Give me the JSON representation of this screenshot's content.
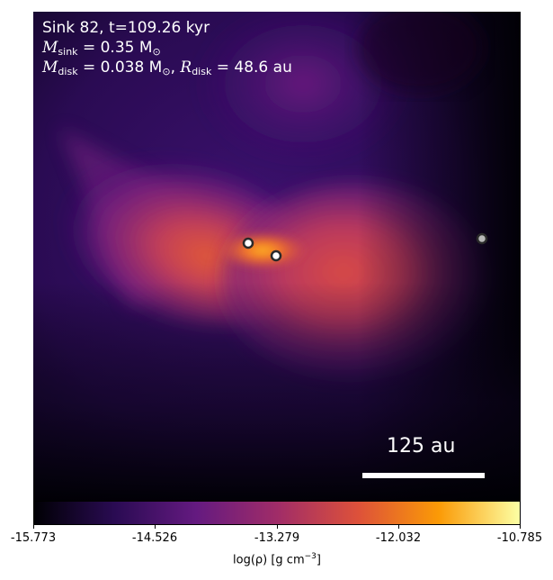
{
  "annotation": {
    "line1": "Sink 82, t=109.26 kyr",
    "m_sink_symbol": "M",
    "m_sink_sub": "sink",
    "m_sink_value": " = 0.35 M",
    "m_sink_unit_sub": "⊙",
    "m_disk_symbol": "M",
    "m_disk_sub": "disk",
    "m_disk_value": " = 0.038 M",
    "m_disk_unit_sub": "⊙",
    "r_disk_sep": ", ",
    "r_disk_symbol": "R",
    "r_disk_sub": "disk",
    "r_disk_value": " = 48.6 au"
  },
  "scale_bar": {
    "label": "125 au"
  },
  "sinks": [
    {
      "name": "sink-primary",
      "fill": "#ffffff"
    },
    {
      "name": "sink-secondary",
      "fill": "#ffffff"
    },
    {
      "name": "sink-distant",
      "fill": "#b8b8b8"
    }
  ],
  "colorbar": {
    "ticks": [
      "-15.773",
      "-14.526",
      "-13.279",
      "-12.032",
      "-10.785"
    ],
    "label_main": "log(ρ) [g cm",
    "label_exp": "−3",
    "label_end": "]",
    "colors": [
      "#000004",
      "#2a0b53",
      "#641a80",
      "#a02c68",
      "#dd513a",
      "#fb9a06",
      "#fcffa4"
    ]
  }
}
